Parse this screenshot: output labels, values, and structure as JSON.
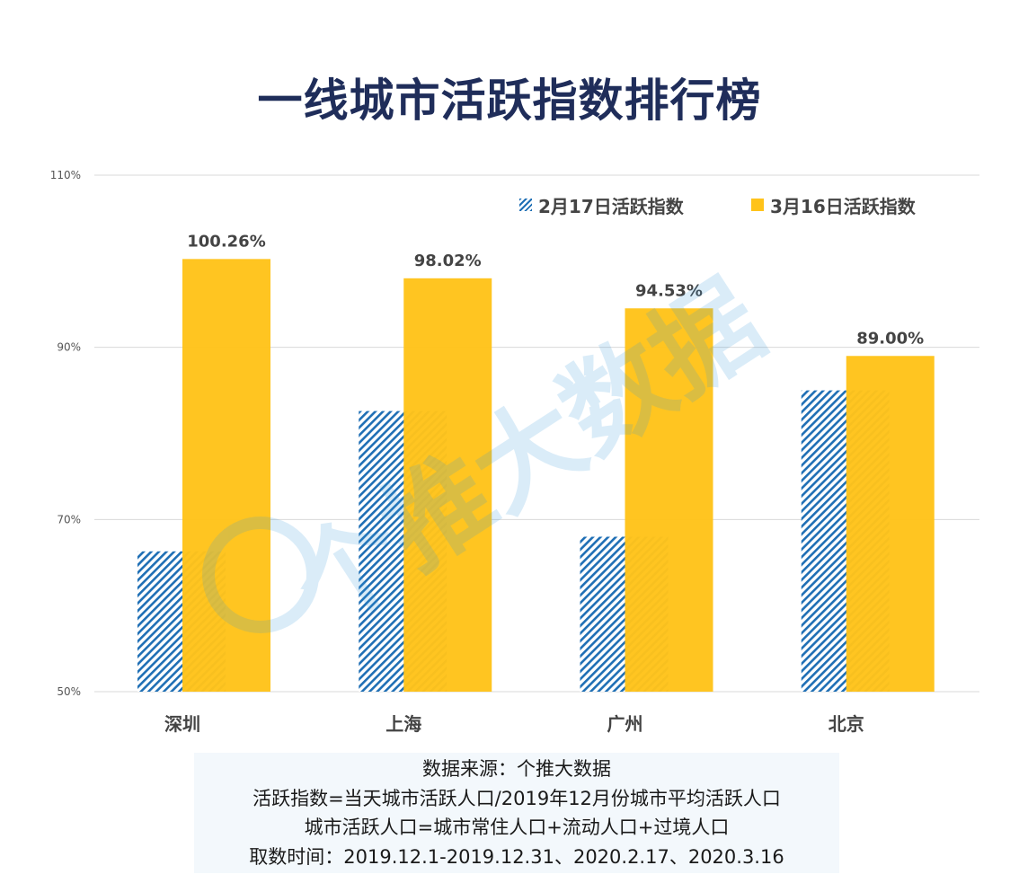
{
  "title": "一线城市活跃指数排行榜",
  "legend": {
    "series_a": "2月17日活跃指数",
    "series_b": "3月16日活跃指数"
  },
  "colors": {
    "series_a": "#1f6fb5",
    "series_b": "#ffc31a",
    "title": "#1f2d5a",
    "grid": "#d9d9d9"
  },
  "chart_data": {
    "type": "bar",
    "title": "一线城市活跃指数排行榜",
    "categories": [
      "深圳",
      "上海",
      "广州",
      "北京"
    ],
    "series": [
      {
        "name": "2月17日活跃指数",
        "values": [
          66.3,
          82.6,
          68.0,
          85.0
        ],
        "pattern": "hatched"
      },
      {
        "name": "3月16日活跃指数",
        "values": [
          100.26,
          98.02,
          94.53,
          89.0
        ],
        "labels": [
          "100.26%",
          "98.02%",
          "94.53%",
          "89.00%"
        ]
      }
    ],
    "y_ticks": [
      "50%",
      "70%",
      "90%",
      "110%"
    ],
    "ylim": [
      50,
      110
    ],
    "grid": true,
    "legend_position": "top-right"
  },
  "notes": [
    "数据来源：个推大数据",
    "活跃指数=当天城市活跃人口/2019年12月份城市平均活跃人口",
    "城市活跃人口=城市常住人口+流动人口+过境人口",
    "取数时间：2019.12.1-2019.12.31、2020.2.17、2020.3.16"
  ],
  "watermark": "个推大数据"
}
